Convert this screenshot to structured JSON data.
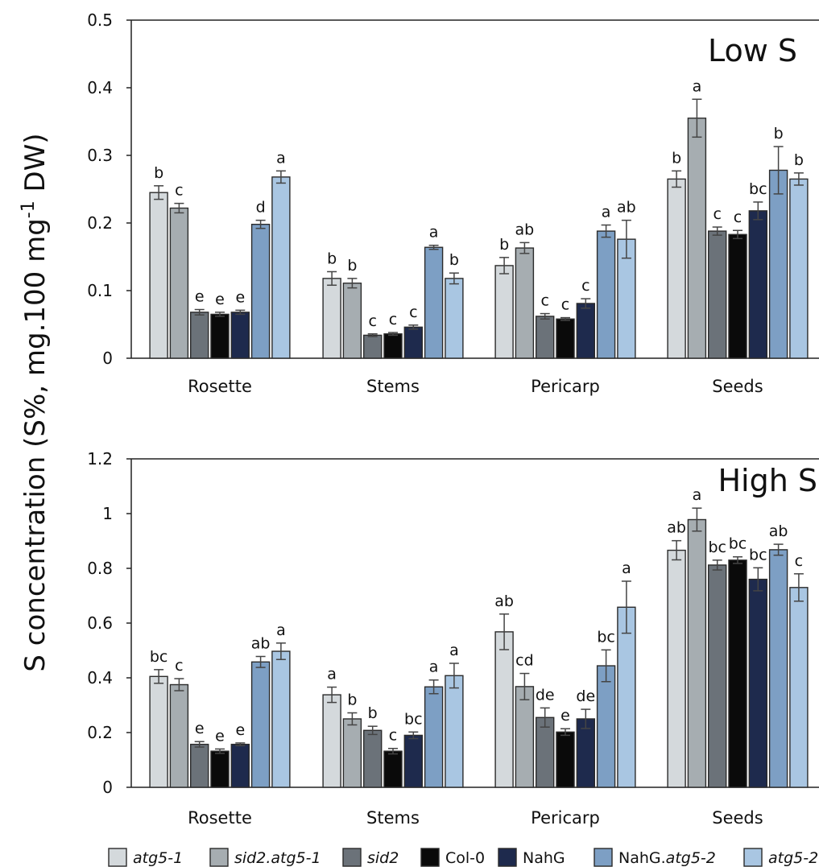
{
  "ylabel_parts": [
    "S concentration (S%, mg.100 mg",
    "-1",
    " DW)"
  ],
  "legend_italic_suffix": "atg5-2",
  "series_colors": [
    "#d4d9dc",
    "#a6adb1",
    "#6b7279",
    "#0a0a0a",
    "#1e2a4d",
    "#7d9fc4",
    "#a9c6e2"
  ],
  "chart_data": [
    {
      "type": "bar",
      "title": "Low S",
      "categories": [
        "Rosette",
        "Stems",
        "Pericarp",
        "Seeds"
      ],
      "ylim": [
        0,
        0.5
      ],
      "yticks": [
        "0",
        "0.1",
        "0.2",
        "0.3",
        "0.4",
        "0.5"
      ],
      "series": [
        {
          "name": "atg5-1",
          "values": [
            0.245,
            0.118,
            0.137,
            0.265
          ],
          "errors": [
            0.01,
            0.01,
            0.012,
            0.012
          ],
          "letters": [
            "b",
            "b",
            "b",
            "b"
          ]
        },
        {
          "name": "sid2.atg5-1",
          "values": [
            0.222,
            0.111,
            0.163,
            0.355
          ],
          "errors": [
            0.007,
            0.007,
            0.008,
            0.028
          ],
          "letters": [
            "c",
            "b",
            "ab",
            "a"
          ]
        },
        {
          "name": "sid2",
          "values": [
            0.068,
            0.034,
            0.062,
            0.188
          ],
          "errors": [
            0.004,
            0.002,
            0.004,
            0.006
          ],
          "letters": [
            "e",
            "c",
            "c",
            "c"
          ]
        },
        {
          "name": "Col-0",
          "values": [
            0.065,
            0.036,
            0.058,
            0.183
          ],
          "errors": [
            0.003,
            0.002,
            0.002,
            0.006
          ],
          "letters": [
            "e",
            "c",
            "c",
            "c"
          ]
        },
        {
          "name": "NahG",
          "values": [
            0.068,
            0.046,
            0.081,
            0.218
          ],
          "errors": [
            0.003,
            0.003,
            0.007,
            0.013
          ],
          "letters": [
            "e",
            "c",
            "c",
            "bc"
          ]
        },
        {
          "name": "NahG.atg5-2",
          "values": [
            0.198,
            0.164,
            0.188,
            0.278
          ],
          "errors": [
            0.006,
            0.003,
            0.009,
            0.035
          ],
          "letters": [
            "d",
            "a",
            "a",
            "b"
          ]
        },
        {
          "name": "atg5-2",
          "values": [
            0.268,
            0.118,
            0.176,
            0.265
          ],
          "errors": [
            0.009,
            0.008,
            0.028,
            0.009
          ],
          "letters": [
            "a",
            "b",
            "ab",
            "b"
          ]
        }
      ]
    },
    {
      "type": "bar",
      "title": "High S",
      "categories": [
        "Rosette",
        "Stems",
        "Pericarp",
        "Seeds"
      ],
      "ylim": [
        0,
        1.2
      ],
      "yticks": [
        "0",
        "0.2",
        "0.4",
        "0.6",
        "0.8",
        "1",
        "1.2"
      ],
      "series": [
        {
          "name": "atg5-1",
          "values": [
            0.405,
            0.338,
            0.568,
            0.866
          ],
          "errors": [
            0.025,
            0.028,
            0.065,
            0.035
          ],
          "letters": [
            "bc",
            "a",
            "ab",
            "ab"
          ]
        },
        {
          "name": "sid2.atg5-1",
          "values": [
            0.375,
            0.25,
            0.368,
            0.978
          ],
          "errors": [
            0.022,
            0.022,
            0.048,
            0.042
          ],
          "letters": [
            "c",
            "b",
            "cd",
            "a"
          ]
        },
        {
          "name": "sid2",
          "values": [
            0.157,
            0.208,
            0.255,
            0.812
          ],
          "errors": [
            0.01,
            0.015,
            0.035,
            0.018
          ],
          "letters": [
            "e",
            "b",
            "de",
            "bc"
          ]
        },
        {
          "name": "Col-0",
          "values": [
            0.132,
            0.132,
            0.202,
            0.83
          ],
          "errors": [
            0.008,
            0.01,
            0.012,
            0.012
          ],
          "letters": [
            "e",
            "c",
            "e",
            "bc"
          ]
        },
        {
          "name": "NahG",
          "values": [
            0.157,
            0.19,
            0.25,
            0.76
          ],
          "errors": [
            0.005,
            0.012,
            0.035,
            0.042
          ],
          "letters": [
            "e",
            "bc",
            "de",
            "bc"
          ]
        },
        {
          "name": "NahG.atg5-2",
          "values": [
            0.458,
            0.367,
            0.444,
            0.868
          ],
          "errors": [
            0.02,
            0.025,
            0.058,
            0.02
          ],
          "letters": [
            "ab",
            "a",
            "bc",
            "ab"
          ]
        },
        {
          "name": "atg5-2",
          "values": [
            0.497,
            0.408,
            0.658,
            0.73
          ],
          "errors": [
            0.03,
            0.045,
            0.095,
            0.05
          ],
          "letters": [
            "a",
            "a",
            "a",
            "c"
          ]
        }
      ]
    }
  ]
}
